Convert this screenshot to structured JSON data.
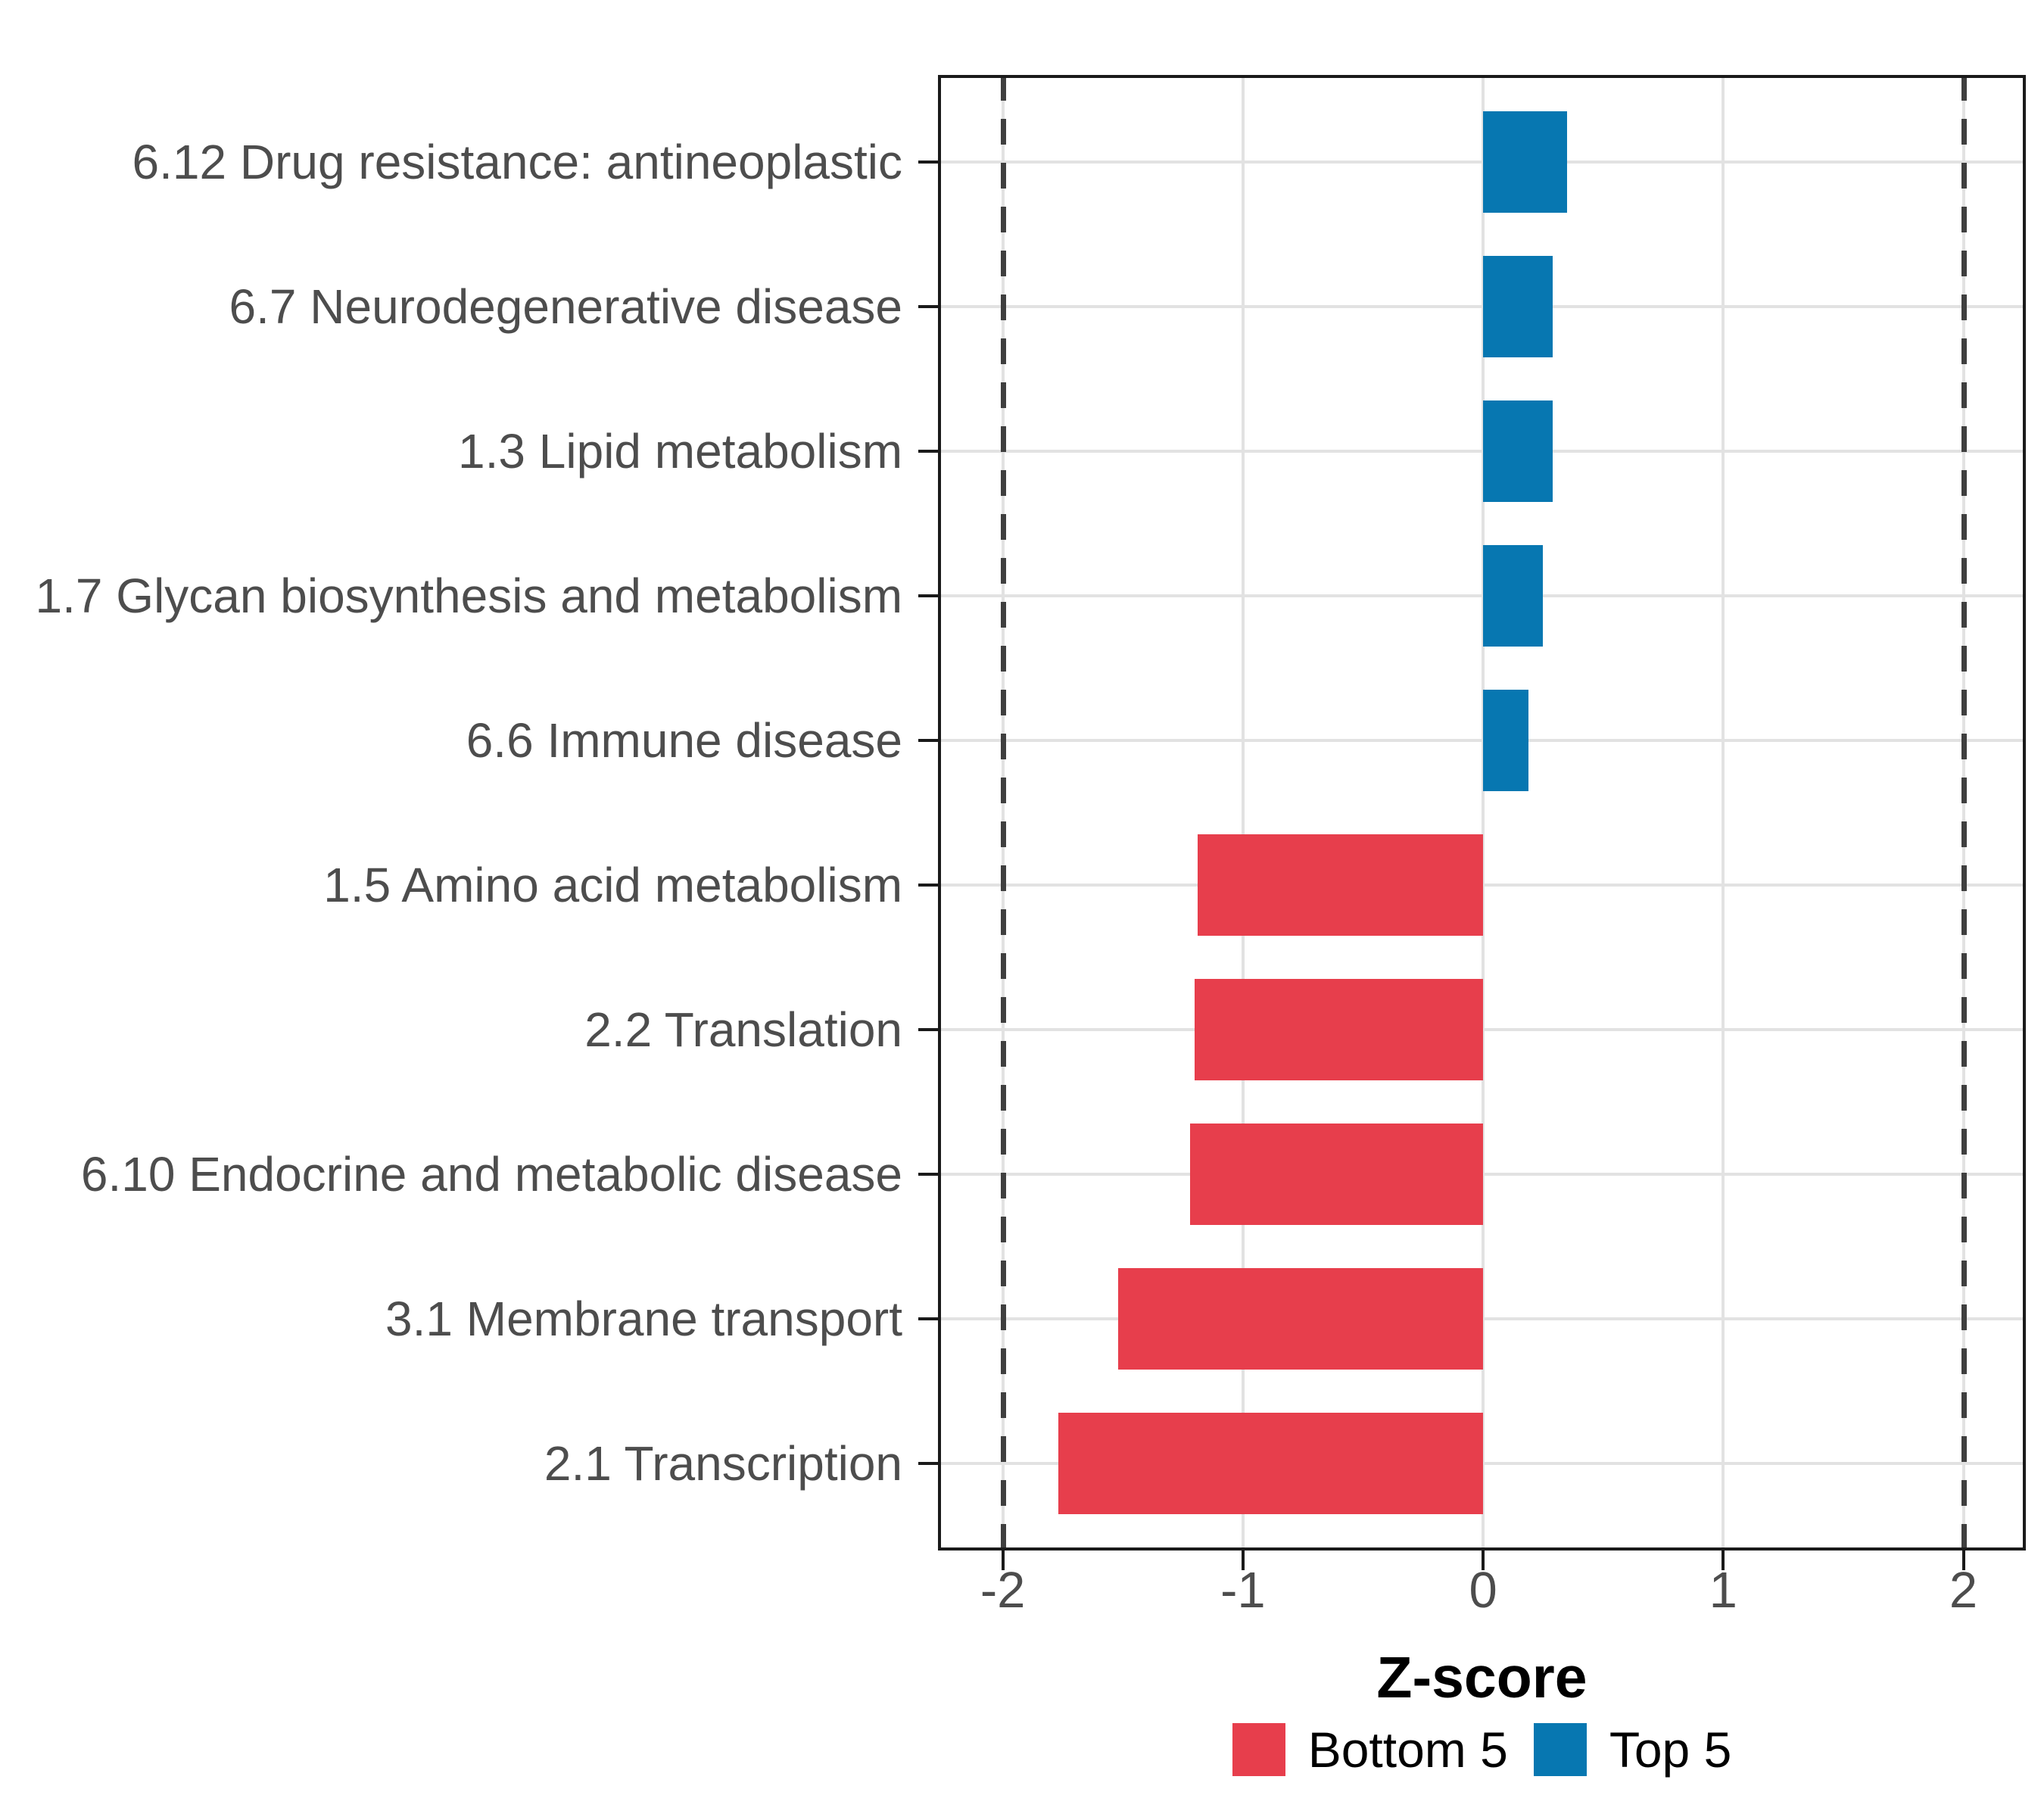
{
  "chart_data": {
    "type": "bar",
    "orientation": "horizontal",
    "title": "",
    "xlabel": "Z-score",
    "categories": [
      "6.12 Drug resistance: antineoplastic",
      "6.7 Neurodegenerative disease",
      "1.3 Lipid metabolism",
      "1.7 Glycan biosynthesis and metabolism",
      "6.6 Immune disease",
      "1.5 Amino acid metabolism",
      "2.2 Translation",
      "6.10 Endocrine and metabolic disease",
      "3.1 Membrane transport",
      "2.1 Transcription"
    ],
    "values": [
      0.35,
      0.29,
      0.29,
      0.25,
      0.19,
      -1.19,
      -1.2,
      -1.22,
      -1.52,
      -1.77
    ],
    "groups": [
      "Top 5",
      "Top 5",
      "Top 5",
      "Top 5",
      "Top 5",
      "Bottom 5",
      "Bottom 5",
      "Bottom 5",
      "Bottom 5",
      "Bottom 5"
    ],
    "x_ticks": [
      "-2",
      "-1",
      "0",
      "1",
      "2"
    ],
    "x_tick_values": [
      -2,
      -1,
      0,
      1,
      2
    ],
    "xlim": [
      -2.27,
      2.26
    ],
    "reference_lines": [
      -2,
      2
    ],
    "bar_width_fraction": 0.7,
    "grid": true,
    "legend_position": "bottom"
  },
  "legend": {
    "items": [
      {
        "label": "Bottom 5",
        "color": "#E73E4C"
      },
      {
        "label": "Top 5",
        "color": "#0777B1"
      }
    ]
  },
  "colors": {
    "grid": "#E2E2E2",
    "axis_text": "#4D4D4D",
    "reference_line": "#3F3F3F",
    "panel_border": "#1A1A1A",
    "tick_mark": "#1A1A1A"
  }
}
